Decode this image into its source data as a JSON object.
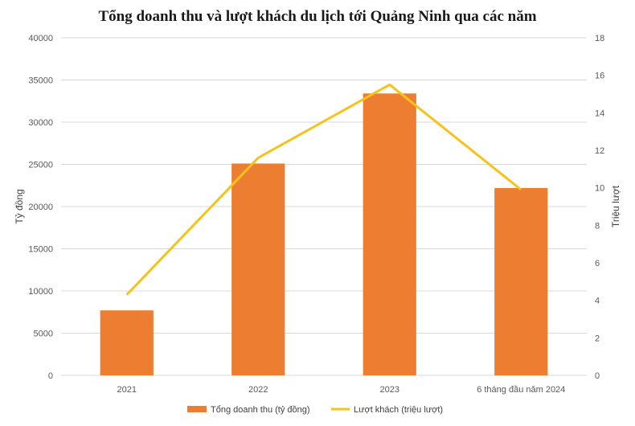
{
  "chart_data": {
    "type": "bar",
    "title": "Tổng doanh thu và lượt khách du lịch tới Quảng Ninh qua các năm",
    "categories": [
      "2021",
      "2022",
      "2023",
      "6 tháng đầu năm 2024"
    ],
    "ylabel": "Tỷ đồng",
    "y2label": "Triệu lượt",
    "ylim": [
      0,
      40000
    ],
    "y2lim": [
      0,
      18
    ],
    "yticks": [
      "0",
      "5000",
      "10000",
      "15000",
      "20000",
      "25000",
      "30000",
      "35000",
      "40000"
    ],
    "y2ticks": [
      "0",
      "2",
      "4",
      "6",
      "8",
      "10",
      "12",
      "14",
      "16",
      "18"
    ],
    "grid": true,
    "legend": "bottom",
    "series": [
      {
        "name": "Tổng doanh thu (tỷ đồng)",
        "type": "bar",
        "axis": "left",
        "color": "#ed7d31",
        "values": [
          7700,
          25100,
          33400,
          22200
        ]
      },
      {
        "name": "Lượt khách (triệu lượt)",
        "type": "line",
        "axis": "right",
        "color": "#f5c31c",
        "values": [
          4.3,
          11.6,
          15.5,
          9.9
        ]
      }
    ]
  }
}
